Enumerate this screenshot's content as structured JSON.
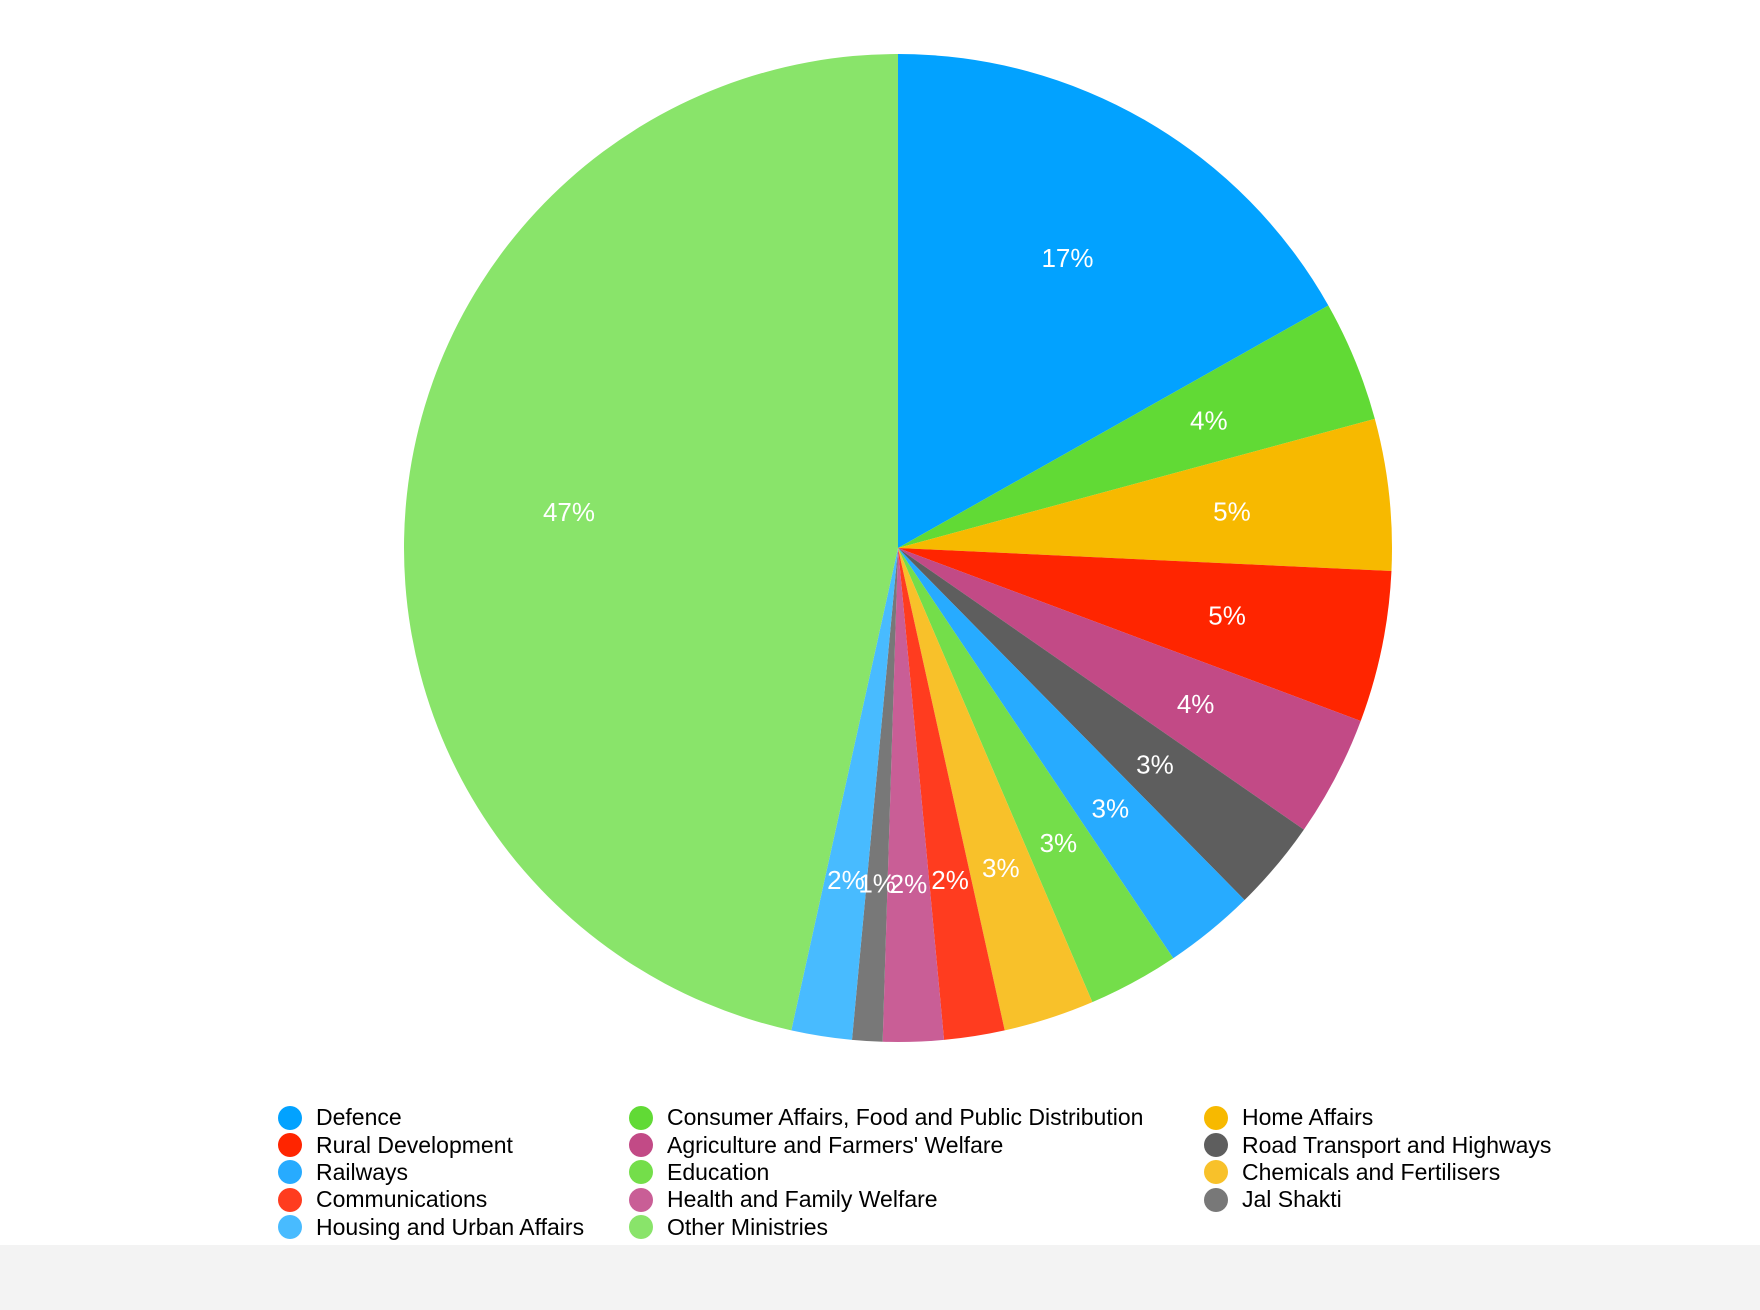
{
  "chart_data": {
    "type": "pie",
    "title": "",
    "slices": [
      {
        "label": "Defence",
        "value": 17,
        "display": "17%",
        "color": "#02A2FF"
      },
      {
        "label": "Consumer Affairs, Food and Public Distribution",
        "value": 4,
        "display": "4%",
        "color": "#61DA35"
      },
      {
        "label": "Home Affairs",
        "value": 5,
        "display": "5%",
        "color": "#F7B900"
      },
      {
        "label": "Rural Development",
        "value": 5,
        "display": "5%",
        "color": "#FF2500"
      },
      {
        "label": "Agriculture and Farmers' Welfare",
        "value": 4,
        "display": "4%",
        "color": "#C24A86"
      },
      {
        "label": "Road Transport and Highways",
        "value": 3,
        "display": "3%",
        "color": "#5E5E5E"
      },
      {
        "label": "Railways",
        "value": 3,
        "display": "3%",
        "color": "#27ABFF"
      },
      {
        "label": "Education",
        "value": 3,
        "display": "3%",
        "color": "#74DE4A"
      },
      {
        "label": "Chemicals and Fertilisers",
        "value": 3,
        "display": "3%",
        "color": "#F8C12A"
      },
      {
        "label": "Communications",
        "value": 2,
        "display": "2%",
        "color": "#FF3C1F"
      },
      {
        "label": "Health and Family Welfare",
        "value": 2,
        "display": "2%",
        "color": "#C95E96"
      },
      {
        "label": "Jal Shakti",
        "value": 1,
        "display": "1%",
        "color": "#787878"
      },
      {
        "label": "Housing and Urban Affairs",
        "value": 2,
        "display": "2%",
        "color": "#48BBFF"
      },
      {
        "label": "Other Ministries",
        "value": 47,
        "display": "47%",
        "color": "#89E46A"
      }
    ],
    "legend": {
      "placement": "bottom",
      "columns": 3,
      "items": [
        {
          "label": "Defence",
          "color": "#02A2FF"
        },
        {
          "label": "Consumer Affairs, Food and Public Distribution",
          "color": "#61DA35"
        },
        {
          "label": "Home Affairs",
          "color": "#F7B900"
        },
        {
          "label": "Rural Development",
          "color": "#FF2500"
        },
        {
          "label": "Agriculture and Farmers' Welfare",
          "color": "#C24A86"
        },
        {
          "label": "Road Transport and Highways",
          "color": "#5E5E5E"
        },
        {
          "label": "Railways",
          "color": "#27ABFF"
        },
        {
          "label": "Education",
          "color": "#74DE4A"
        },
        {
          "label": "Chemicals and Fertilisers",
          "color": "#F8C12A"
        },
        {
          "label": "Communications",
          "color": "#FF3C1F"
        },
        {
          "label": "Health and Family Welfare",
          "color": "#C95E96"
        },
        {
          "label": "Jal Shakti",
          "color": "#787878"
        },
        {
          "label": "Housing and Urban Affairs",
          "color": "#48BBFF"
        },
        {
          "label": "Other Ministries",
          "color": "#89E46A"
        }
      ]
    }
  }
}
